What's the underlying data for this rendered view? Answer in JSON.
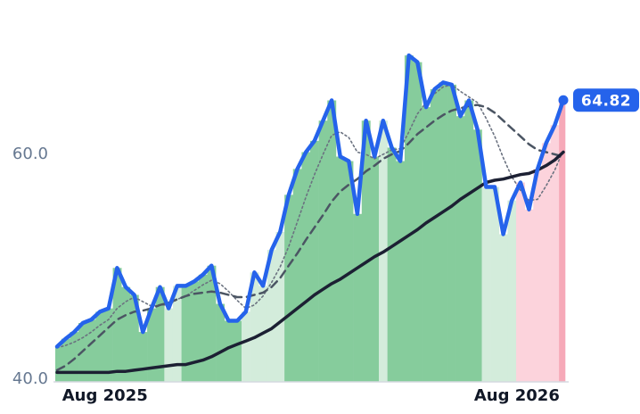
{
  "chart_data": {
    "type": "line",
    "categories": [
      null,
      null,
      null,
      null,
      null,
      null,
      "Aug 2025",
      null,
      null,
      null,
      null,
      null,
      null,
      null,
      null,
      null,
      null,
      null,
      null,
      null,
      null,
      null,
      null,
      null,
      null,
      null,
      null,
      null,
      null,
      null,
      null,
      null,
      null,
      null,
      null,
      null,
      null,
      null,
      null,
      null,
      null,
      null,
      null,
      null,
      null,
      null,
      null,
      null,
      null,
      null,
      null,
      null,
      null,
      null,
      "Aug 2026",
      null,
      null,
      null,
      null,
      null
    ],
    "ylim": [
      40,
      73
    ],
    "yticks": [
      {
        "value": 40,
        "label": "40.0"
      },
      {
        "value": 60,
        "label": "60.0"
      }
    ],
    "area_colors": [
      "#86cc9c",
      "#86cc9c",
      "#86cc9c",
      "#86cc9c",
      "#86cc9c",
      "#86cc9c",
      "#86cc9c",
      "#86cc9c",
      "#86cc9c",
      "#86cc9c",
      "#86cc9c",
      "#86cc9c",
      "#86cc9c",
      "#d3ecdb",
      "#d3ecdb",
      "#86cc9c",
      "#86cc9c",
      "#86cc9c",
      "#86cc9c",
      "#86cc9c",
      "#86cc9c",
      "#86cc9c",
      "#d3ecdb",
      "#d3ecdb",
      "#d3ecdb",
      "#d3ecdb",
      "#d3ecdb",
      "#86cc9c",
      "#86cc9c",
      "#86cc9c",
      "#86cc9c",
      "#86cc9c",
      "#86cc9c",
      "#86cc9c",
      "#86cc9c",
      "#86cc9c",
      "#86cc9c",
      "#86cc9c",
      "#d3ecdb",
      "#86cc9c",
      "#86cc9c",
      "#86cc9c",
      "#86cc9c",
      "#86cc9c",
      "#86cc9c",
      "#86cc9c",
      "#86cc9c",
      "#86cc9c",
      "#86cc9c",
      "#86cc9c",
      "#d3ecdb",
      "#d3ecdb",
      "#d3ecdb",
      "#d3ecdb",
      "#fcd3dc",
      "#fcd3dc",
      "#fcd3dc",
      "#fcd3dc",
      "#fcd3dc",
      "#f6a9b8"
    ],
    "series": [
      {
        "color": "#2563eb",
        "width": 4.5,
        "dash": "solid",
        "values": [
          42.9,
          43.6,
          44.2,
          45.0,
          45.3,
          46.0,
          46.3,
          49.9,
          48.2,
          47.5,
          44.2,
          46.3,
          48.2,
          46.3,
          48.3,
          48.3,
          48.7,
          49.3,
          50.1,
          46.7,
          45.2,
          45.2,
          46.0,
          49.5,
          48.3,
          51.5,
          53.1,
          56.4,
          58.7,
          60.2,
          61.2,
          63.0,
          64.8,
          59.8,
          59.4,
          54.7,
          63.0,
          59.8,
          63.0,
          60.6,
          59.4,
          68.8,
          68.2,
          64.2,
          65.8,
          66.4,
          66.2,
          63.4,
          64.8,
          62.2,
          57.1,
          57.1,
          52.9,
          55.9,
          57.5,
          55.1,
          58.7,
          61.0,
          62.6,
          64.82
        ]
      },
      {
        "color": "#1c2033",
        "width": 3.5,
        "dash": "solid",
        "values": [
          40.6,
          40.6,
          40.6,
          40.6,
          40.6,
          40.6,
          40.6,
          40.7,
          40.7,
          40.8,
          40.9,
          41.0,
          41.1,
          41.2,
          41.3,
          41.3,
          41.5,
          41.7,
          42.0,
          42.4,
          42.8,
          43.1,
          43.4,
          43.7,
          44.1,
          44.5,
          45.1,
          45.7,
          46.3,
          46.9,
          47.5,
          48.0,
          48.5,
          48.9,
          49.4,
          49.9,
          50.4,
          50.9,
          51.3,
          51.8,
          52.3,
          52.8,
          53.3,
          53.9,
          54.4,
          54.9,
          55.4,
          56.0,
          56.5,
          57.0,
          57.5,
          57.7,
          57.8,
          58.0,
          58.2,
          58.3,
          58.6,
          59.0,
          59.5,
          60.2
        ]
      },
      {
        "color": "#4b5563",
        "width": 2.5,
        "dash": "dashed",
        "values": [
          40.8,
          41.2,
          41.8,
          42.5,
          43.2,
          43.9,
          44.6,
          45.3,
          45.7,
          46.0,
          46.1,
          46.3,
          46.6,
          46.8,
          47.1,
          47.4,
          47.6,
          47.7,
          47.8,
          47.7,
          47.5,
          47.3,
          47.3,
          47.5,
          47.7,
          48.2,
          49.0,
          50.1,
          51.2,
          52.4,
          53.5,
          54.6,
          55.8,
          56.7,
          57.3,
          57.8,
          58.5,
          59.0,
          59.6,
          60.0,
          60.3,
          61.0,
          61.8,
          62.4,
          63.0,
          63.5,
          63.9,
          64.1,
          64.3,
          64.4,
          64.2,
          63.7,
          63.0,
          62.3,
          61.6,
          60.9,
          60.4,
          60.2,
          60.0,
          59.8
        ]
      },
      {
        "color": "#6b7280",
        "width": 1.6,
        "dash": "dotted",
        "values": [
          42.8,
          43.0,
          43.3,
          43.7,
          44.2,
          44.8,
          45.3,
          46.3,
          46.9,
          47.3,
          46.9,
          46.5,
          46.6,
          46.6,
          47.1,
          47.4,
          47.9,
          48.4,
          48.8,
          48.5,
          47.8,
          47.0,
          46.3,
          46.6,
          47.4,
          48.6,
          50.0,
          51.8,
          54.0,
          56.2,
          58.2,
          60.0,
          61.7,
          62.0,
          61.5,
          60.2,
          60.0,
          59.6,
          60.0,
          60.4,
          60.5,
          62.0,
          63.6,
          64.6,
          65.4,
          66.0,
          66.2,
          65.6,
          65.1,
          64.6,
          63.2,
          61.6,
          59.7,
          58.0,
          56.8,
          55.9,
          56.0,
          57.2,
          58.6,
          60.4
        ]
      }
    ]
  }
}
